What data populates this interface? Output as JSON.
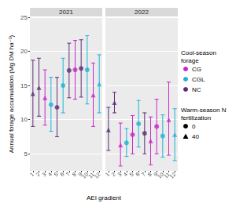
{
  "chart_data": {
    "type": "scatter",
    "xlabel": "AEI gradient",
    "ylabel": "Annual forage accumulation (Mg DM ha⁻¹)",
    "ylim": [
      2.5,
      25
    ],
    "yticks": [
      5,
      10,
      15,
      20,
      25
    ],
    "grid": true,
    "color_legend": {
      "title": "Cool-season forage",
      "series": [
        {
          "name": "CG",
          "color": "#c726c7"
        },
        {
          "name": "CGL",
          "color": "#1fb2d6"
        },
        {
          "name": "NC",
          "color": "#5e2d79"
        }
      ]
    },
    "marker_legend": {
      "title": "Warm-season N fertilization",
      "groups": [
        {
          "name": "0",
          "marker": "circle"
        },
        {
          "name": "40",
          "marker": "triangle"
        }
      ]
    },
    "panels": [
      {
        "title": "2021",
        "categories": [
          "1",
          "2",
          "3",
          "4",
          "5",
          "6",
          "7",
          "8",
          "9",
          "10",
          "11",
          "12"
        ],
        "forage": [
          "NC",
          "NC",
          "CG",
          "CGL",
          "NC",
          "CGL",
          "NC",
          "CG",
          "NC",
          "CGL",
          "CG",
          "CGL"
        ],
        "n_fertilization": [
          "40",
          "40",
          "40",
          "0",
          "0",
          "0",
          "0",
          "0",
          "0",
          "0",
          "40",
          "40"
        ],
        "values": [
          13.8,
          14.7,
          13.2,
          12.2,
          11.8,
          15.0,
          17.2,
          17.3,
          17.5,
          17.3,
          13.6,
          15.2
        ],
        "error_low": [
          9.0,
          10.5,
          9.2,
          8.3,
          7.5,
          11.0,
          13.2,
          13.0,
          13.3,
          12.3,
          9.0,
          11.0
        ],
        "error_high": [
          18.7,
          19.0,
          17.3,
          16.2,
          16.2,
          19.0,
          21.2,
          21.6,
          21.7,
          22.3,
          18.3,
          19.5
        ]
      },
      {
        "title": "2022",
        "categories": [
          "1",
          "2",
          "3",
          "4",
          "5",
          "6",
          "7",
          "8",
          "9",
          "10",
          "11",
          "12"
        ],
        "forage": [
          "NC",
          "NC",
          "CG",
          "CGL",
          "CG",
          "CGL",
          "NC",
          "CG",
          "CG",
          "CGL",
          "CG",
          "CGL"
        ],
        "n_fertilization": [
          "40",
          "40",
          "40",
          "0",
          "0",
          "0",
          "0",
          "40",
          "0",
          "0",
          "40",
          "40"
        ],
        "values": [
          8.5,
          12.5,
          6.3,
          6.6,
          7.8,
          9.4,
          8.0,
          6.9,
          9.0,
          7.6,
          10.0,
          7.8
        ],
        "error_low": [
          5.5,
          11.0,
          3.2,
          4.6,
          5.0,
          6.0,
          5.0,
          3.4,
          5.0,
          4.5,
          4.8,
          4.0
        ],
        "error_high": [
          11.8,
          14.0,
          9.5,
          8.7,
          10.6,
          12.8,
          11.0,
          10.4,
          13.0,
          10.7,
          15.5,
          11.6
        ]
      }
    ]
  }
}
